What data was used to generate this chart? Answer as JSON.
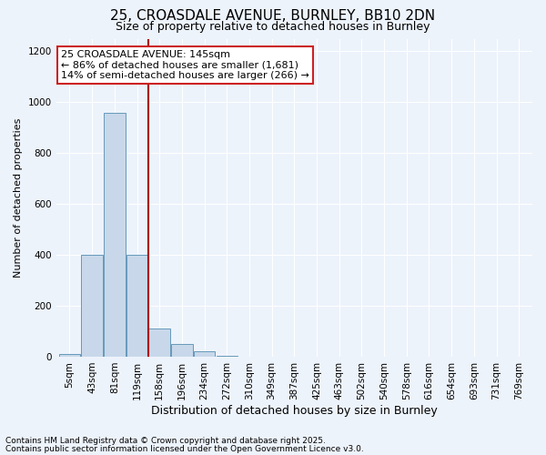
{
  "title_line1": "25, CROASDALE AVENUE, BURNLEY, BB10 2DN",
  "title_line2": "Size of property relative to detached houses in Burnley",
  "xlabel": "Distribution of detached houses by size in Burnley",
  "ylabel": "Number of detached properties",
  "categories": [
    "5sqm",
    "43sqm",
    "81sqm",
    "119sqm",
    "158sqm",
    "196sqm",
    "234sqm",
    "272sqm",
    "310sqm",
    "349sqm",
    "387sqm",
    "425sqm",
    "463sqm",
    "502sqm",
    "540sqm",
    "578sqm",
    "616sqm",
    "654sqm",
    "693sqm",
    "731sqm",
    "769sqm"
  ],
  "values": [
    10,
    400,
    960,
    400,
    110,
    50,
    20,
    5,
    0,
    0,
    0,
    0,
    0,
    0,
    0,
    0,
    0,
    0,
    0,
    0,
    0
  ],
  "bar_color": "#c8d8ea",
  "bar_edge_color": "#6699bb",
  "vline_color": "#aa0000",
  "annotation_text": "25 CROASDALE AVENUE: 145sqm\n← 86% of detached houses are smaller (1,681)\n14% of semi-detached houses are larger (266) →",
  "annotation_box_color": "#ffffff",
  "annotation_box_edge": "#cc2222",
  "ylim": [
    0,
    1250
  ],
  "yticks": [
    0,
    200,
    400,
    600,
    800,
    1000,
    1200
  ],
  "background_color": "#edf3fb",
  "footer_line1": "Contains HM Land Registry data © Crown copyright and database right 2025.",
  "footer_line2": "Contains public sector information licensed under the Open Government Licence v3.0.",
  "grid_color": "#ffffff",
  "title_fontsize": 11,
  "subtitle_fontsize": 9,
  "ylabel_fontsize": 8,
  "xlabel_fontsize": 9,
  "tick_fontsize": 7.5,
  "footer_fontsize": 6.5,
  "ann_fontsize": 8
}
